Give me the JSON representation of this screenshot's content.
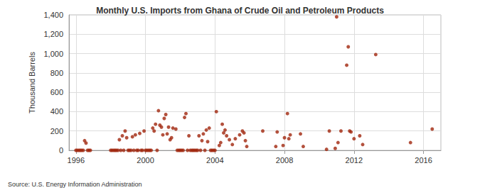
{
  "chart_data": {
    "type": "scatter",
    "title": "Monthly U.S. Imports from Ghana of Crude Oil and Petroleum Products",
    "ylabel": "Thousand Barrels",
    "source": "Source: U.S. Energy Information Administration",
    "color": "#a0250d",
    "marker": "circle",
    "grid": true,
    "xlim": [
      1995.6,
      2017
    ],
    "xticks": [
      1996,
      2000,
      2004,
      2008,
      2012,
      2016
    ],
    "ylim": [
      0,
      1400
    ],
    "yticks": [
      0,
      200,
      400,
      600,
      800,
      {
        "value": 1000,
        "label": "1,000"
      },
      {
        "value": 1200,
        "label": "1,200"
      },
      {
        "value": 1400,
        "label": "1,400"
      }
    ],
    "x": [
      1996.0,
      1996.08,
      1996.17,
      1996.25,
      1996.33,
      1996.42,
      1996.5,
      1996.58,
      1996.67,
      1996.75,
      1996.83,
      1998.0,
      1998.08,
      1998.17,
      1998.25,
      1998.33,
      1998.42,
      1998.5,
      1998.58,
      1998.67,
      1998.75,
      1998.83,
      1998.92,
      1999.0,
      1999.08,
      1999.17,
      1999.25,
      1999.33,
      1999.42,
      1999.5,
      1999.58,
      1999.67,
      1999.75,
      1999.83,
      1999.92,
      2000.0,
      2000.08,
      2000.17,
      2000.25,
      2000.33,
      2000.42,
      2000.5,
      2000.58,
      2000.67,
      2000.75,
      2000.83,
      2000.92,
      2001.0,
      2001.08,
      2001.17,
      2001.25,
      2001.33,
      2001.42,
      2001.5,
      2001.58,
      2001.75,
      2001.83,
      2001.92,
      2002.0,
      2002.08,
      2002.17,
      2002.25,
      2002.33,
      2002.42,
      2002.5,
      2002.58,
      2002.67,
      2002.75,
      2002.83,
      2002.92,
      2003.0,
      2003.08,
      2003.17,
      2003.25,
      2003.33,
      2003.42,
      2003.5,
      2003.58,
      2003.67,
      2003.75,
      2003.83,
      2003.92,
      2004.0,
      2004.08,
      2004.25,
      2004.33,
      2004.42,
      2004.5,
      2004.58,
      2004.67,
      2004.83,
      2005.0,
      2005.17,
      2005.42,
      2005.58,
      2005.67,
      2005.75,
      2005.83,
      2006.75,
      2007.5,
      2007.58,
      2007.92,
      2008.0,
      2008.17,
      2008.25,
      2008.33,
      2008.92,
      2009.08,
      2010.42,
      2010.58,
      2010.92,
      2011.0,
      2011.08,
      2011.25,
      2011.58,
      2011.67,
      2011.75,
      2011.83,
      2012.0,
      2012.33,
      2012.5,
      2013.25,
      2015.25,
      2016.5
    ],
    "values": [
      0,
      0,
      0,
      0,
      0,
      0,
      100,
      75,
      0,
      0,
      0,
      0,
      0,
      0,
      0,
      0,
      0,
      110,
      0,
      150,
      0,
      200,
      130,
      0,
      0,
      0,
      140,
      0,
      160,
      0,
      0,
      175,
      0,
      0,
      200,
      0,
      0,
      0,
      0,
      0,
      230,
      200,
      270,
      0,
      410,
      260,
      240,
      160,
      330,
      370,
      170,
      240,
      110,
      130,
      230,
      220,
      0,
      0,
      0,
      0,
      0,
      340,
      380,
      0,
      150,
      0,
      0,
      0,
      0,
      0,
      0,
      150,
      0,
      100,
      170,
      0,
      210,
      90,
      230,
      0,
      0,
      0,
      0,
      400,
      50,
      80,
      270,
      180,
      210,
      150,
      110,
      60,
      120,
      160,
      200,
      180,
      100,
      40,
      200,
      40,
      190,
      50,
      130,
      380,
      120,
      160,
      170,
      40,
      10,
      200,
      20,
      1380,
      80,
      200,
      880,
      1070,
      200,
      190,
      120,
      150,
      60,
      990,
      80,
      220
    ]
  }
}
